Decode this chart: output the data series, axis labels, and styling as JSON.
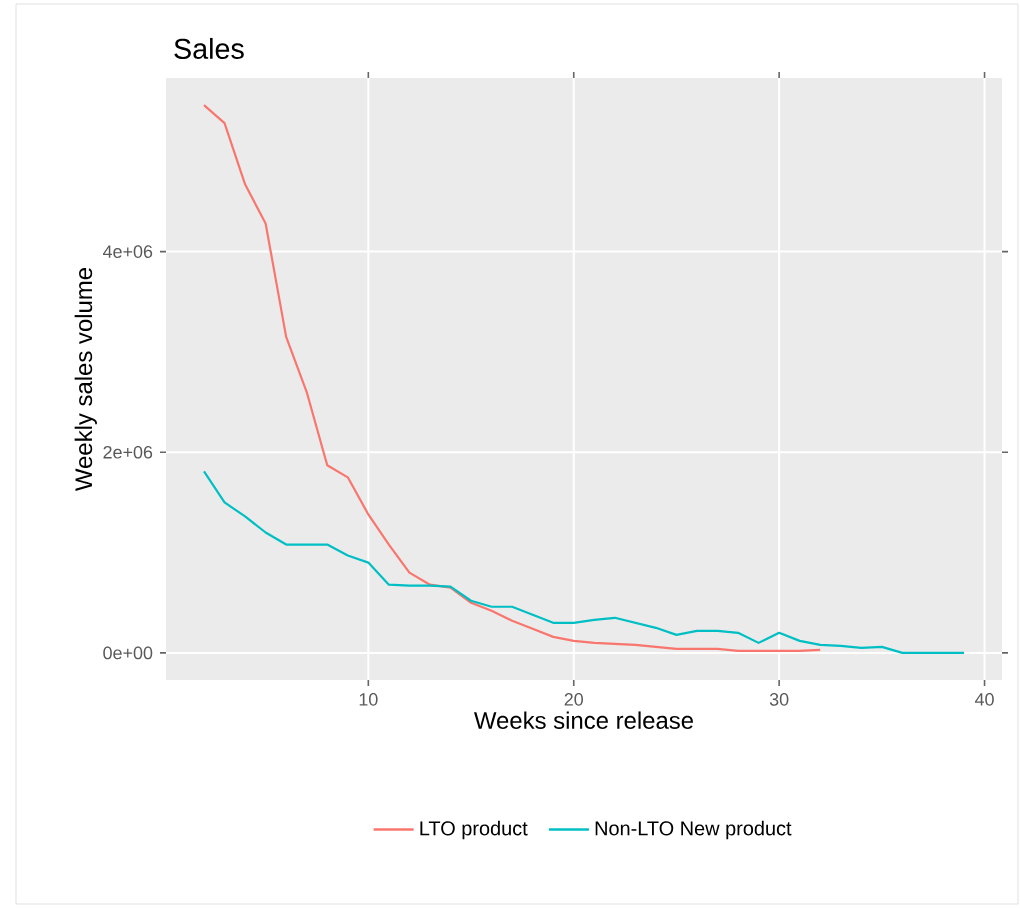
{
  "chart_data": {
    "type": "line",
    "title": "Sales",
    "xlabel": "Weeks since release",
    "ylabel": "Weekly sales volume",
    "x": [
      2,
      3,
      4,
      5,
      6,
      7,
      8,
      9,
      10,
      11,
      12,
      13,
      14,
      15,
      16,
      17,
      18,
      19,
      20,
      21,
      22,
      23,
      24,
      25,
      26,
      27,
      28,
      29,
      30,
      31,
      32,
      33,
      34,
      35,
      36,
      37,
      38,
      39
    ],
    "series": [
      {
        "name": "LTO product",
        "color": "#f8766d",
        "values": [
          5460000,
          5280000,
          4670000,
          4280000,
          3150000,
          2600000,
          1870000,
          1750000,
          1380000,
          1080000,
          800000,
          680000,
          650000,
          500000,
          420000,
          320000,
          240000,
          160000,
          120000,
          100000,
          90000,
          80000,
          60000,
          40000,
          40000,
          40000,
          20000,
          20000,
          20000,
          20000,
          30000,
          null,
          null,
          null,
          null,
          null,
          null,
          null
        ]
      },
      {
        "name": "Non-LTO New product",
        "color": "#00bfc4",
        "values": [
          1810000,
          1500000,
          1360000,
          1200000,
          1080000,
          1080000,
          1080000,
          970000,
          900000,
          680000,
          670000,
          670000,
          660000,
          520000,
          460000,
          460000,
          380000,
          300000,
          300000,
          330000,
          350000,
          300000,
          250000,
          180000,
          220000,
          220000,
          200000,
          100000,
          200000,
          120000,
          80000,
          70000,
          50000,
          60000,
          0,
          0,
          0,
          0
        ]
      }
    ],
    "xlim": [
      0.15,
      40.85
    ],
    "ylim": [
      -270000,
      5730000
    ],
    "xticks": [
      10,
      20,
      30,
      40
    ],
    "yticks": [
      {
        "value": 0,
        "label": "0e+00"
      },
      {
        "value": 2000000,
        "label": "2e+06"
      },
      {
        "value": 4000000,
        "label": "4e+06"
      }
    ],
    "grid": true,
    "legend": "bottom"
  }
}
